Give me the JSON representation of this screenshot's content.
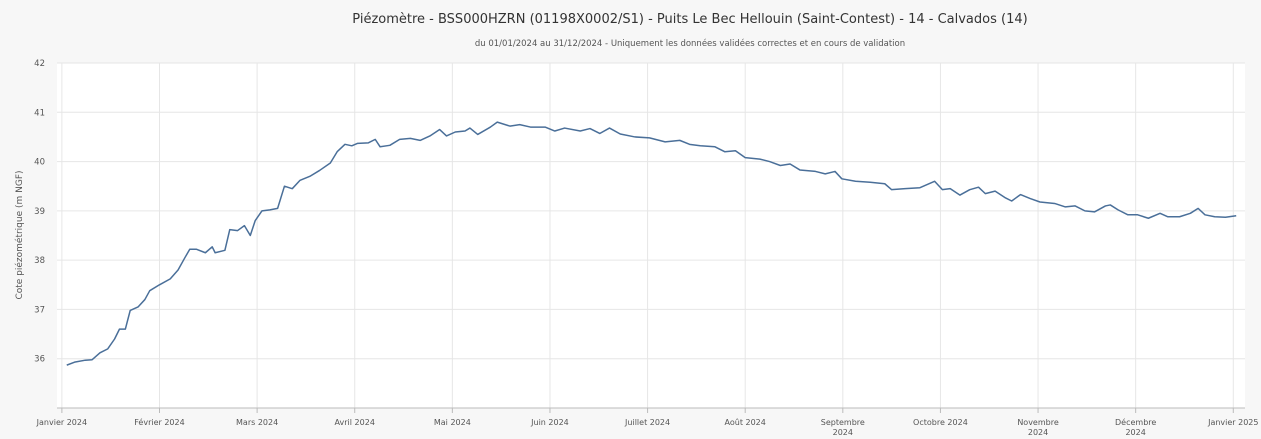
{
  "chart_data": {
    "type": "line",
    "title": "Piézomètre - BSS000HZRN (01198X0002/S1) - Puits Le Bec Hellouin (Saint-Contest) - 14 - Calvados (14)",
    "subtitle": "du 01/01/2024 au 31/12/2024 - Uniquement les données validées correctes et en cours de validation",
    "y_label": "Cote piézométrique (m NGF)",
    "color": "#4a6f99",
    "grid": true,
    "xlim": [
      -0.05,
      12.12
    ],
    "xticks": [
      {
        "value": 0,
        "label": "Janvier 2024"
      },
      {
        "value": 1,
        "label": "Février 2024"
      },
      {
        "value": 2,
        "label": "Mars 2024"
      },
      {
        "value": 3,
        "label": "Avril 2024"
      },
      {
        "value": 4,
        "label": "Mai 2024"
      },
      {
        "value": 5,
        "label": "Juin 2024"
      },
      {
        "value": 6,
        "label": "Juillet 2024"
      },
      {
        "value": 7,
        "label": "Août 2024"
      },
      {
        "value": 8,
        "label": "Septembre 2024"
      },
      {
        "value": 9,
        "label": "Octobre 2024"
      },
      {
        "value": 10,
        "label": "Novembre 2024"
      },
      {
        "value": 11,
        "label": "Décembre 2024"
      },
      {
        "value": 12,
        "label": "Janvier 2025"
      }
    ],
    "ylim": [
      35,
      42
    ],
    "yticks": [
      36,
      37,
      38,
      39,
      40,
      41,
      42
    ],
    "x": [
      0.05,
      0.13,
      0.24,
      0.31,
      0.39,
      0.47,
      0.54,
      0.59,
      0.65,
      0.7,
      0.78,
      0.85,
      0.9,
      1.0,
      1.11,
      1.19,
      1.26,
      1.31,
      1.38,
      1.47,
      1.54,
      1.57,
      1.67,
      1.72,
      1.8,
      1.87,
      1.93,
      1.98,
      2.05,
      2.13,
      2.21,
      2.28,
      2.36,
      2.44,
      2.54,
      2.64,
      2.75,
      2.82,
      2.9,
      2.97,
      3.03,
      3.14,
      3.21,
      3.26,
      3.36,
      3.46,
      3.57,
      3.67,
      3.77,
      3.87,
      3.94,
      4.03,
      4.13,
      4.18,
      4.26,
      4.39,
      4.46,
      4.59,
      4.69,
      4.8,
      4.95,
      5.05,
      5.15,
      5.31,
      5.41,
      5.51,
      5.61,
      5.72,
      5.87,
      6.02,
      6.18,
      6.33,
      6.43,
      6.54,
      6.69,
      6.79,
      6.9,
      7.0,
      7.15,
      7.25,
      7.36,
      7.46,
      7.56,
      7.72,
      7.82,
      7.92,
      7.99,
      8.13,
      8.28,
      8.43,
      8.5,
      8.64,
      8.79,
      8.94,
      9.02,
      9.1,
      9.2,
      9.3,
      9.39,
      9.46,
      9.56,
      9.66,
      9.73,
      9.82,
      9.92,
      10.02,
      10.17,
      10.28,
      10.38,
      10.48,
      10.58,
      10.69,
      10.74,
      10.82,
      10.92,
      11.02,
      11.13,
      11.25,
      11.33,
      11.45,
      11.56,
      11.64,
      11.71,
      11.81,
      11.92,
      12.03
    ],
    "values": [
      35.87,
      35.93,
      35.97,
      35.98,
      36.12,
      36.2,
      36.4,
      36.6,
      36.6,
      36.98,
      37.05,
      37.2,
      37.38,
      37.5,
      37.62,
      37.8,
      38.05,
      38.22,
      38.22,
      38.15,
      38.27,
      38.15,
      38.2,
      38.62,
      38.6,
      38.7,
      38.5,
      38.8,
      39.0,
      39.02,
      39.05,
      39.5,
      39.45,
      39.62,
      39.7,
      39.82,
      39.97,
      40.2,
      40.35,
      40.32,
      40.37,
      40.38,
      40.45,
      40.3,
      40.33,
      40.45,
      40.47,
      40.43,
      40.52,
      40.65,
      40.52,
      40.6,
      40.62,
      40.68,
      40.55,
      40.7,
      40.8,
      40.72,
      40.75,
      40.7,
      40.7,
      40.62,
      40.68,
      40.62,
      40.67,
      40.57,
      40.68,
      40.56,
      40.5,
      40.48,
      40.4,
      40.43,
      40.35,
      40.32,
      40.3,
      40.2,
      40.22,
      40.08,
      40.05,
      40.0,
      39.92,
      39.95,
      39.83,
      39.8,
      39.75,
      39.8,
      39.65,
      39.6,
      39.58,
      39.55,
      39.43,
      39.45,
      39.47,
      39.6,
      39.43,
      39.45,
      39.32,
      39.43,
      39.48,
      39.35,
      39.4,
      39.27,
      39.2,
      39.33,
      39.25,
      39.18,
      39.15,
      39.08,
      39.1,
      39.0,
      38.98,
      39.1,
      39.12,
      39.02,
      38.92,
      38.92,
      38.85,
      38.95,
      38.88,
      38.88,
      38.95,
      39.05,
      38.92,
      38.88,
      38.87,
      38.9
    ]
  }
}
